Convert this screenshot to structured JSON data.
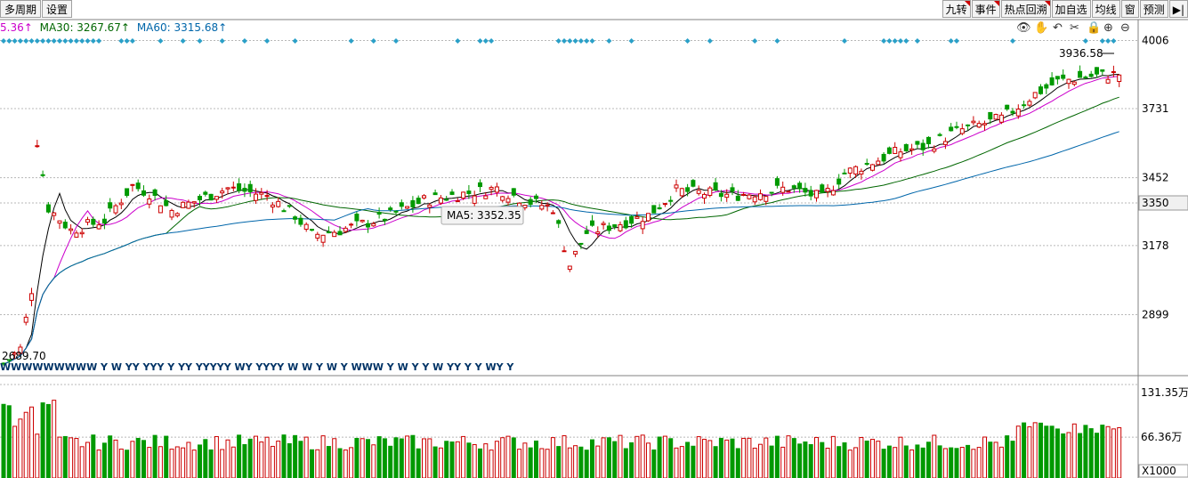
{
  "toolbar_left": [
    "多周期",
    "设置"
  ],
  "toolbar_right": [
    {
      "label": "九转",
      "flag": true
    },
    {
      "label": "事件",
      "flag": true
    },
    {
      "label": "热点回溯",
      "flag": true
    },
    {
      "label": "加自选",
      "flag": false
    },
    {
      "label": "均线",
      "flag": false
    },
    {
      "label": "窗",
      "flag": false
    },
    {
      "label": "预测",
      "flag": false
    },
    {
      "label": "▶|",
      "flag": false
    }
  ],
  "ma_legend": {
    "ma10_partial": "5.36↑",
    "ma30": "MA30: 3267.67↑",
    "ma60": "MA60: 3315.68↑"
  },
  "toolbar_icons": [
    "eye-icon",
    "hand-icon",
    "undo-icon",
    "scissors-icon",
    "lock-icon",
    "zoom-in-icon",
    "zoom-out-icon"
  ],
  "colors": {
    "up": "#cc0000",
    "down": "#009900",
    "ma5": "#000000",
    "ma10": "#cc00cc",
    "ma30": "#006600",
    "ma60": "#0066aa",
    "marker": "#2aa0c8",
    "signal": "#003366",
    "grid": "#b8b8b8"
  },
  "chart_data": {
    "type": "candlestick",
    "price_axis": {
      "ticks": [
        "4006",
        "3731",
        "3452",
        "3350",
        "3178",
        "2899"
      ],
      "highlight": "3350"
    },
    "annotations": {
      "high_label": "3936.58",
      "low_label": "2689.70",
      "tooltip": "MA5: 3352.35"
    },
    "signal_row": "WWWWWWWWW Y W YY YYY Y YY YYYYY WY YYYY W W Y W Y WWW Y W Y Y W YY Y Y WY Y",
    "volume_axis": {
      "ticks": [
        "131.35万",
        "66.36万"
      ],
      "unit": "X1000"
    }
  }
}
